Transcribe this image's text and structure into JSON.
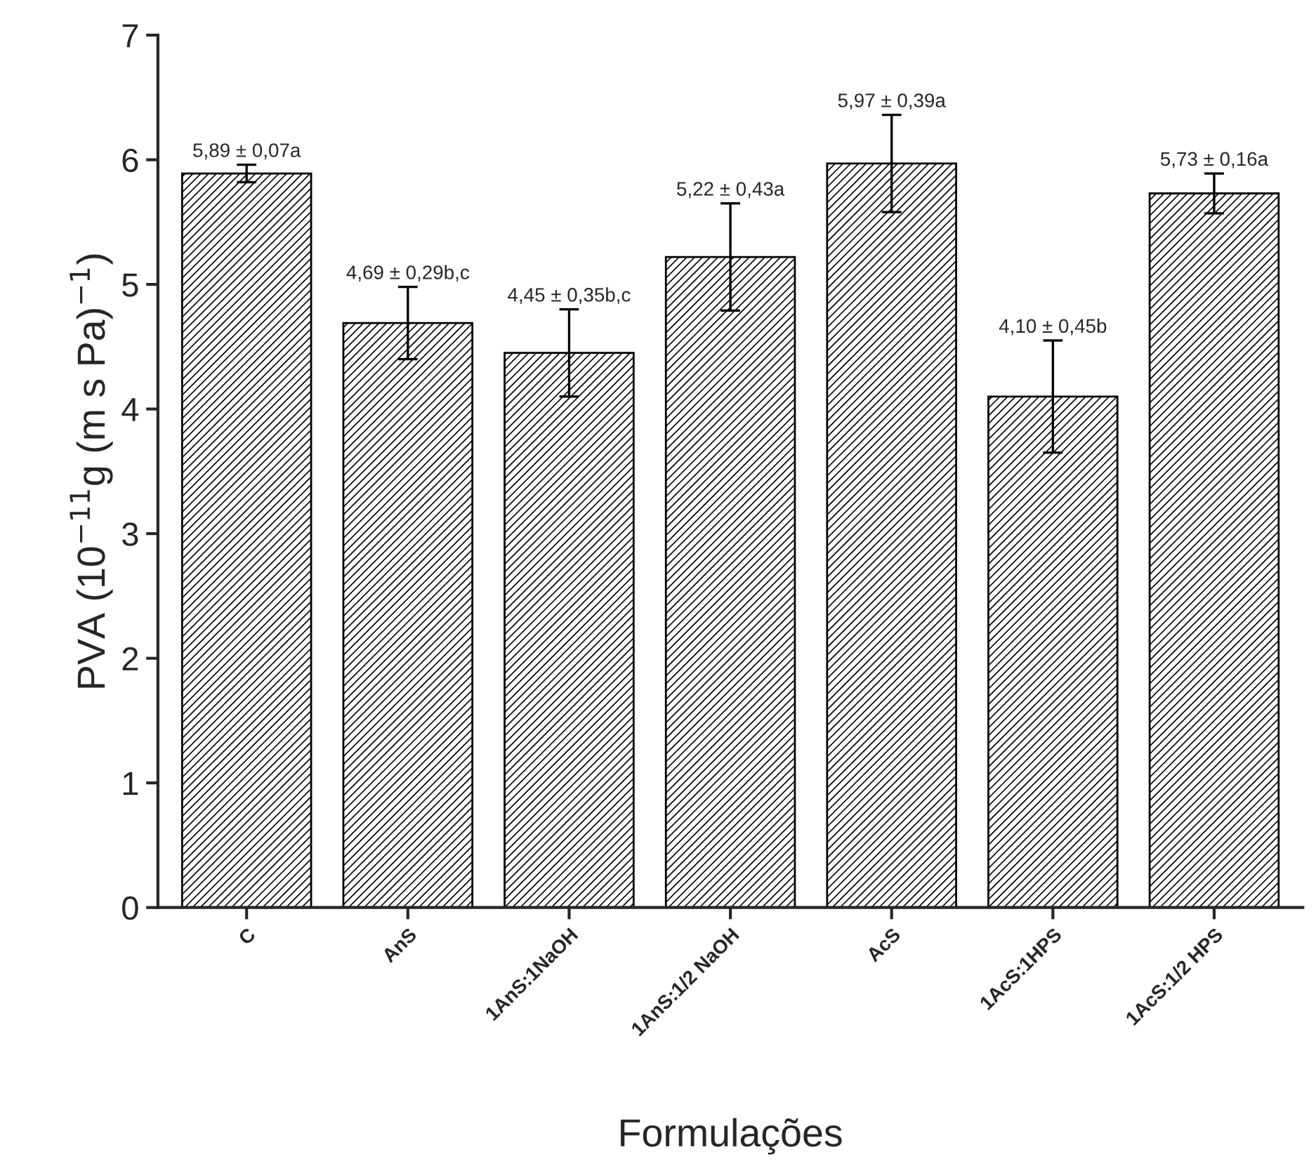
{
  "chart_data": {
    "type": "bar",
    "xlabel": "Formulações",
    "ylabel": "PVA (10$^{−11}$g (m s Pa)$^{−1}$)",
    "categories": [
      "C",
      "AnS",
      "1AnS:1NaOH",
      "1AnS:1/2 NaOH",
      "AcS",
      "1AcS:1HPS",
      "1AcS:1/2 HPS"
    ],
    "values": [
      5.89,
      4.69,
      4.45,
      5.22,
      5.97,
      4.1,
      5.73
    ],
    "errors": [
      0.07,
      0.29,
      0.35,
      0.43,
      0.39,
      0.45,
      0.16
    ],
    "value_labels": [
      "5,89 ± 0,07a",
      "4,69 ± 0,29b,c",
      "4,45 ± 0,35b,c",
      "5,22 ± 0,43a",
      "5,97 ± 0,39a",
      "4,10 ± 0,45b",
      "5,73 ± 0,16a"
    ],
    "color": "#000000",
    "ylim": [
      0,
      7
    ],
    "yticks": [
      0,
      1,
      2,
      3,
      4,
      5,
      6,
      7
    ],
    "grid": false,
    "legend": false
  }
}
